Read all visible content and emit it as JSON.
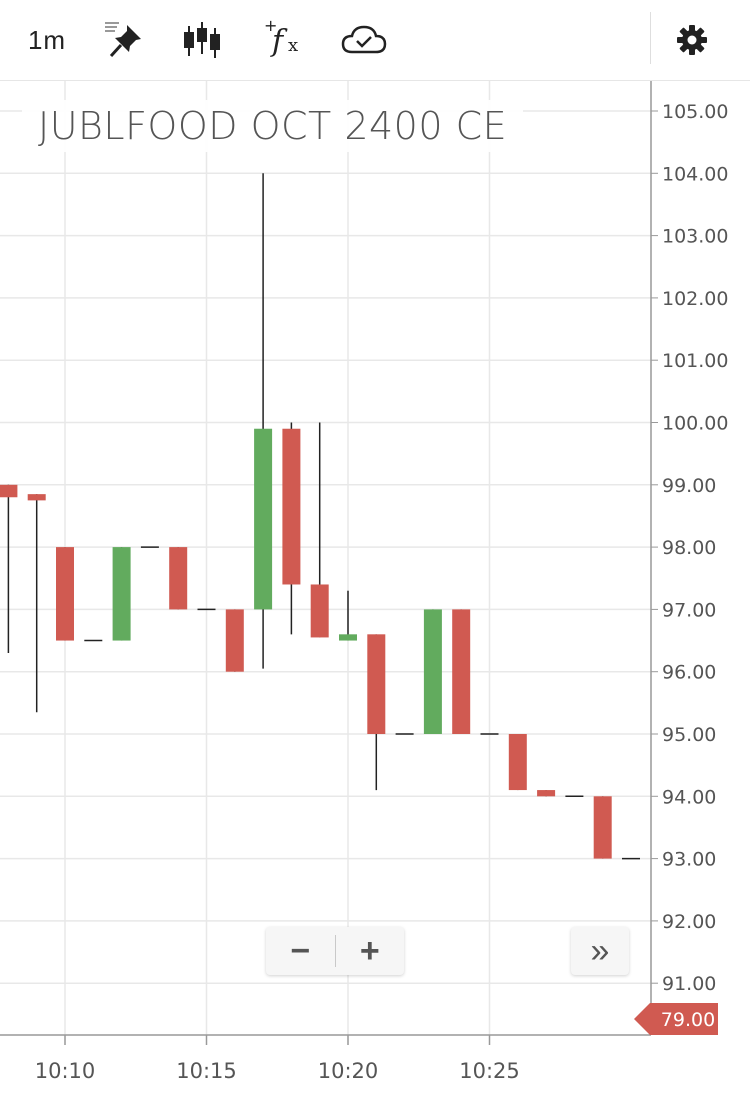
{
  "toolbar": {
    "interval_label": "1m",
    "icons": [
      "pin-icon",
      "candlestick-icon",
      "fx-indicator-icon",
      "cloud-check-icon",
      "gear-icon"
    ]
  },
  "colors": {
    "up": "#62ab5e",
    "down": "#d05a51",
    "wick": "#222222",
    "grid": "#e8e8e8",
    "axis_text": "#555555",
    "last_price_bg": "#d05a51"
  },
  "zoom": {
    "minus_label": "−",
    "plus_label": "+"
  },
  "scroll_label": "»",
  "last_price_label": "79.00",
  "chart_data": {
    "type": "candlestick",
    "title": "JUBLFOOD OCT 2400 CE",
    "interval": "1m",
    "ylim": [
      90.2,
      105.8
    ],
    "y_ticks": [
      "91.00",
      "92.00",
      "93.00",
      "94.00",
      "95.00",
      "96.00",
      "97.00",
      "98.00",
      "99.00",
      "100.00",
      "101.00",
      "102.00",
      "103.00",
      "104.00",
      "105.00"
    ],
    "x_tick_labels": [
      "10:10",
      "10:15",
      "10:20",
      "10:25"
    ],
    "x_tick_minutes": [
      10,
      15,
      20,
      25
    ],
    "last_price": 79.0,
    "candles": [
      {
        "time": "10:08",
        "open": 99.0,
        "high": 99.0,
        "low": 96.3,
        "close": 98.8
      },
      {
        "time": "10:09",
        "open": 98.85,
        "high": 98.85,
        "low": 95.35,
        "close": 98.75
      },
      {
        "time": "10:10",
        "open": 98.0,
        "high": 98.0,
        "low": 96.5,
        "close": 96.5
      },
      {
        "time": "10:11",
        "open": 96.5,
        "high": 96.5,
        "low": 96.5,
        "close": 96.5
      },
      {
        "time": "10:12",
        "open": 96.5,
        "high": 98.0,
        "low": 96.5,
        "close": 98.0
      },
      {
        "time": "10:13",
        "open": 98.0,
        "high": 98.0,
        "low": 98.0,
        "close": 98.0
      },
      {
        "time": "10:14",
        "open": 98.0,
        "high": 98.0,
        "low": 97.0,
        "close": 97.0
      },
      {
        "time": "10:15",
        "open": 97.0,
        "high": 97.0,
        "low": 97.0,
        "close": 97.0
      },
      {
        "time": "10:16",
        "open": 97.0,
        "high": 97.0,
        "low": 96.0,
        "close": 96.0
      },
      {
        "time": "10:17",
        "open": 97.0,
        "high": 104.0,
        "low": 96.05,
        "close": 99.9
      },
      {
        "time": "10:18",
        "open": 99.9,
        "high": 100.0,
        "low": 96.6,
        "close": 97.4
      },
      {
        "time": "10:19",
        "open": 97.4,
        "high": 100.0,
        "low": 96.55,
        "close": 96.55
      },
      {
        "time": "10:20",
        "open": 96.5,
        "high": 97.3,
        "low": 96.5,
        "close": 96.6
      },
      {
        "time": "10:21",
        "open": 96.6,
        "high": 96.6,
        "low": 94.1,
        "close": 95.0
      },
      {
        "time": "10:22",
        "open": 95.0,
        "high": 95.0,
        "low": 95.0,
        "close": 95.0
      },
      {
        "time": "10:23",
        "open": 95.0,
        "high": 97.0,
        "low": 95.0,
        "close": 97.0
      },
      {
        "time": "10:24",
        "open": 97.0,
        "high": 97.0,
        "low": 95.0,
        "close": 95.0
      },
      {
        "time": "10:25",
        "open": 95.0,
        "high": 95.0,
        "low": 95.0,
        "close": 95.0
      },
      {
        "time": "10:26",
        "open": 95.0,
        "high": 95.0,
        "low": 94.1,
        "close": 94.1
      },
      {
        "time": "10:27",
        "open": 94.1,
        "high": 94.1,
        "low": 94.0,
        "close": 94.0
      },
      {
        "time": "10:28",
        "open": 94.0,
        "high": 94.0,
        "low": 94.0,
        "close": 94.0
      },
      {
        "time": "10:29",
        "open": 94.0,
        "high": 94.0,
        "low": 93.0,
        "close": 93.0
      },
      {
        "time": "10:30",
        "open": 93.0,
        "high": 93.0,
        "low": 93.0,
        "close": 93.0
      }
    ]
  }
}
